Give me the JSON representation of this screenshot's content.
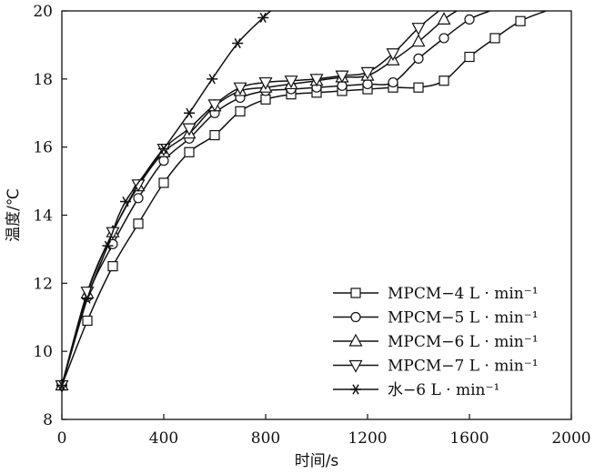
{
  "chart_data": {
    "type": "line",
    "xlabel": "时间/s",
    "ylabel": "温度/℃",
    "xlim": [
      0,
      2000
    ],
    "ylim": [
      8,
      20
    ],
    "xticks": [
      "0",
      "400",
      "800",
      "1200",
      "1600",
      "2000"
    ],
    "yticks": [
      "8",
      "10",
      "12",
      "14",
      "16",
      "18",
      "20"
    ],
    "grid": false,
    "legend_position": "bottom-right",
    "series": [
      {
        "name": "MPCM−4 L · min⁻¹",
        "marker": "square",
        "x": [
          0,
          100,
          200,
          300,
          400,
          500,
          600,
          700,
          800,
          900,
          1000,
          1100,
          1200,
          1300,
          1400,
          1500,
          1600,
          1700,
          1800,
          1900
        ],
        "y": [
          9.0,
          10.9,
          12.5,
          13.75,
          14.95,
          15.85,
          16.35,
          17.05,
          17.4,
          17.55,
          17.6,
          17.65,
          17.7,
          17.75,
          17.75,
          17.95,
          18.65,
          19.2,
          19.7,
          20.0
        ]
      },
      {
        "name": "MPCM−5 L · min⁻¹",
        "marker": "circle",
        "x": [
          0,
          100,
          200,
          300,
          400,
          500,
          600,
          700,
          800,
          900,
          1000,
          1100,
          1200,
          1300,
          1400,
          1500,
          1600,
          1680
        ],
        "y": [
          9.0,
          11.6,
          13.15,
          14.5,
          15.6,
          16.25,
          17.0,
          17.45,
          17.65,
          17.7,
          17.75,
          17.8,
          17.85,
          17.9,
          18.6,
          19.2,
          19.75,
          20.0
        ]
      },
      {
        "name": "MPCM−6 L · min⁻¹",
        "marker": "triangle-up",
        "x": [
          0,
          100,
          200,
          300,
          400,
          500,
          600,
          700,
          800,
          900,
          1000,
          1100,
          1200,
          1300,
          1400,
          1500,
          1550
        ],
        "y": [
          9.0,
          11.7,
          13.5,
          14.85,
          15.85,
          16.4,
          17.2,
          17.65,
          17.75,
          17.85,
          17.95,
          18.05,
          18.1,
          18.55,
          19.1,
          19.75,
          20.0
        ]
      },
      {
        "name": "MPCM−7 L · min⁻¹",
        "marker": "triangle-down",
        "x": [
          0,
          100,
          200,
          300,
          400,
          500,
          600,
          700,
          800,
          900,
          1000,
          1100,
          1200,
          1300,
          1400,
          1480
        ],
        "y": [
          9.0,
          11.75,
          13.5,
          14.9,
          15.95,
          16.55,
          17.25,
          17.75,
          17.9,
          17.95,
          18.0,
          18.1,
          18.2,
          18.75,
          19.5,
          20.0
        ]
      },
      {
        "name": "水−6 L · min⁻¹",
        "marker": "asterisk",
        "x": [
          0,
          100,
          180,
          250,
          400,
          500,
          590,
          690,
          790,
          820
        ],
        "y": [
          9.0,
          11.55,
          13.1,
          14.4,
          15.95,
          17.0,
          18.0,
          19.05,
          19.8,
          20.0
        ]
      }
    ]
  }
}
